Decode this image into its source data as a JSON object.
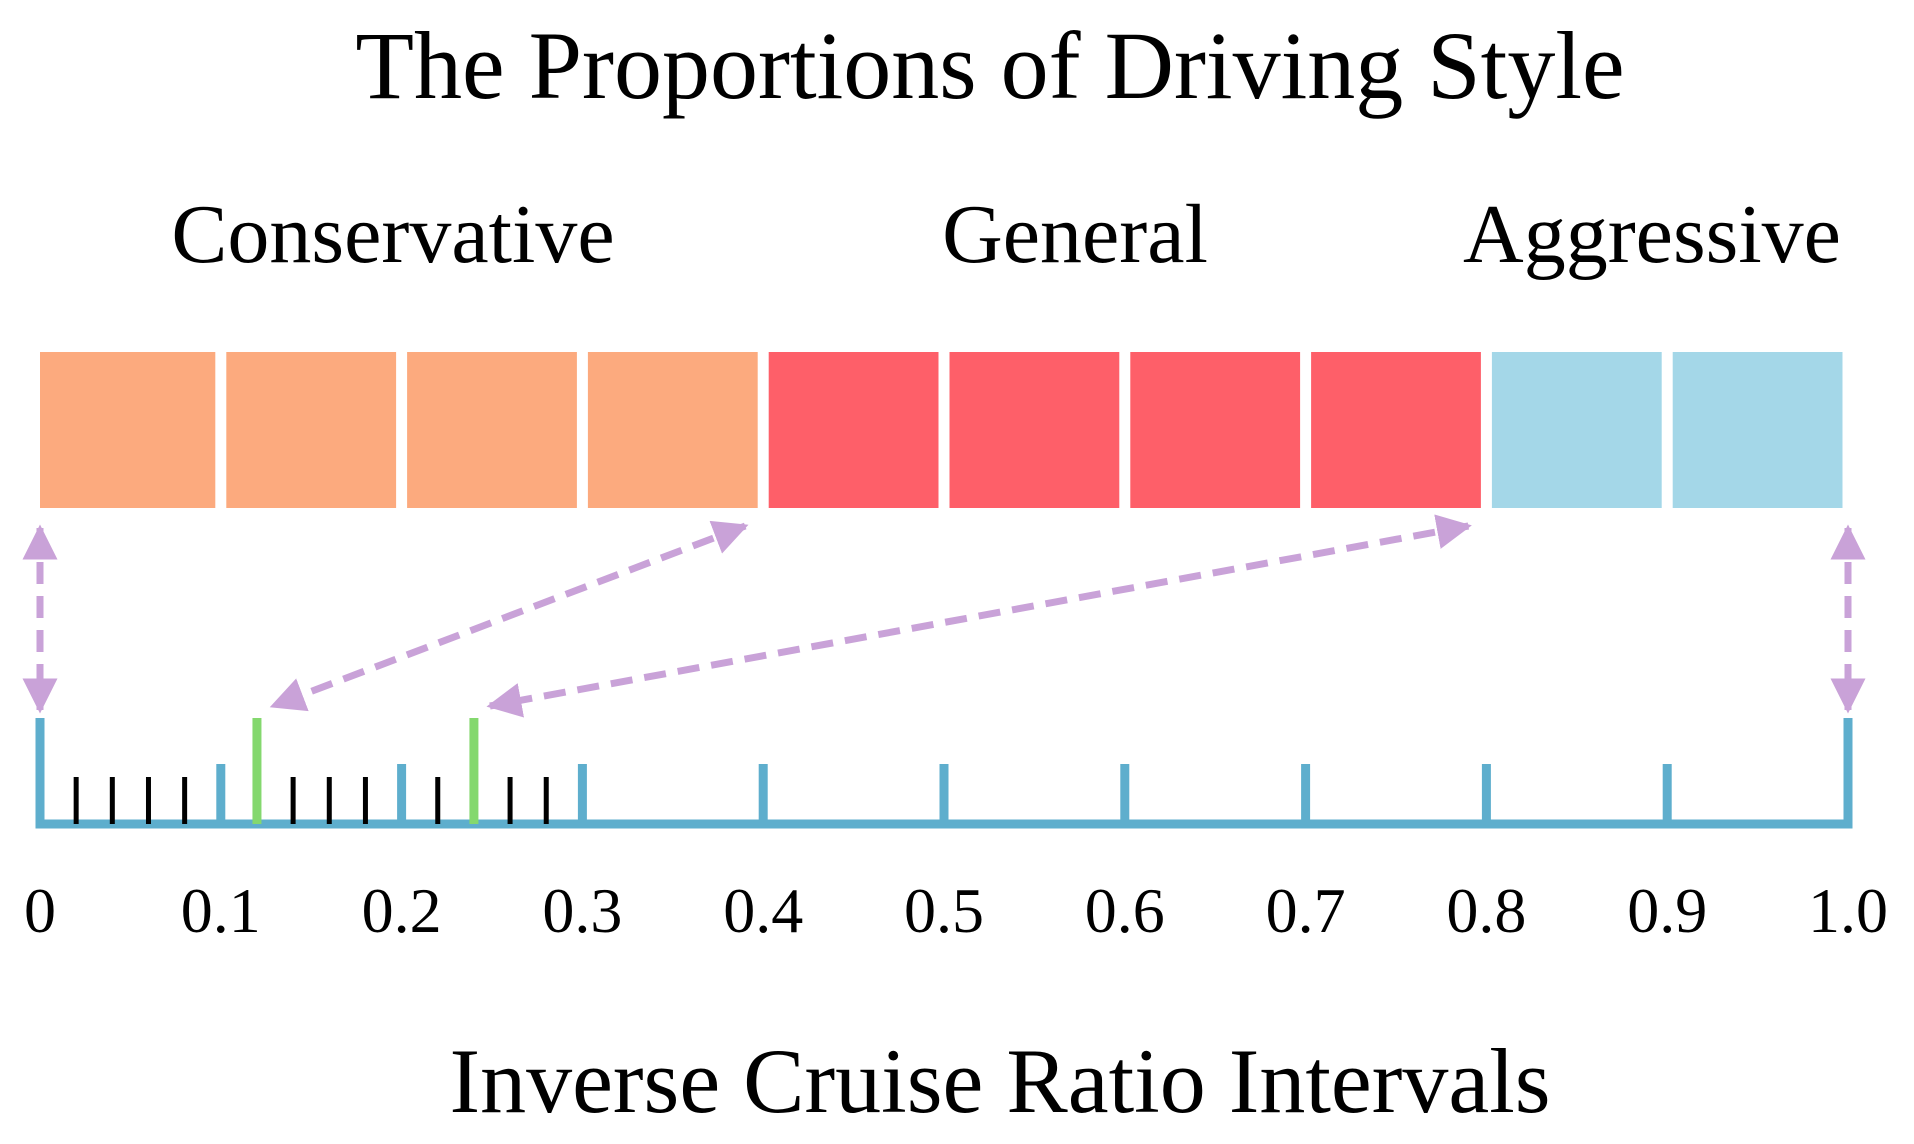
{
  "title": "The Proportions of Driving Style",
  "axis_title": "Inverse Cruise Ratio Intervals",
  "colors": {
    "conservative": "#fcaa7e",
    "general": "#fe5f69",
    "aggressive": "#a4d7e8",
    "axis": "#5eaecd",
    "minor_tick": "#000000",
    "highlight_tick": "#84d86e",
    "arrow": "#c9a2d8",
    "text": "#000000"
  },
  "styles": [
    {
      "name": "Conservative",
      "blocks": 4,
      "color_key": "conservative"
    },
    {
      "name": "General",
      "blocks": 4,
      "color_key": "general"
    },
    {
      "name": "Aggressive",
      "blocks": 2,
      "color_key": "aggressive"
    }
  ],
  "axis": {
    "min": 0,
    "max": 1.0,
    "major_ticks": [
      0,
      0.1,
      0.2,
      0.3,
      0.4,
      0.5,
      0.6,
      0.7,
      0.8,
      0.9,
      1.0
    ],
    "tick_labels": [
      "0",
      "0.1",
      "0.2",
      "0.3",
      "0.4",
      "0.5",
      "0.6",
      "0.7",
      "0.8",
      "0.9",
      "1.0"
    ],
    "minor_ticks": [
      0.02,
      0.04,
      0.06,
      0.08,
      0.14,
      0.16,
      0.18,
      0.22,
      0.24,
      0.26,
      0.28
    ],
    "highlight_ticks": [
      0.12,
      0.24
    ]
  },
  "mappings": [
    {
      "from_block": 0,
      "to_value": 0
    },
    {
      "from_block": 4,
      "to_value": 0.12
    },
    {
      "from_block": 8,
      "to_value": 0.24
    },
    {
      "from_block": 10,
      "to_value": 1.0
    }
  ]
}
